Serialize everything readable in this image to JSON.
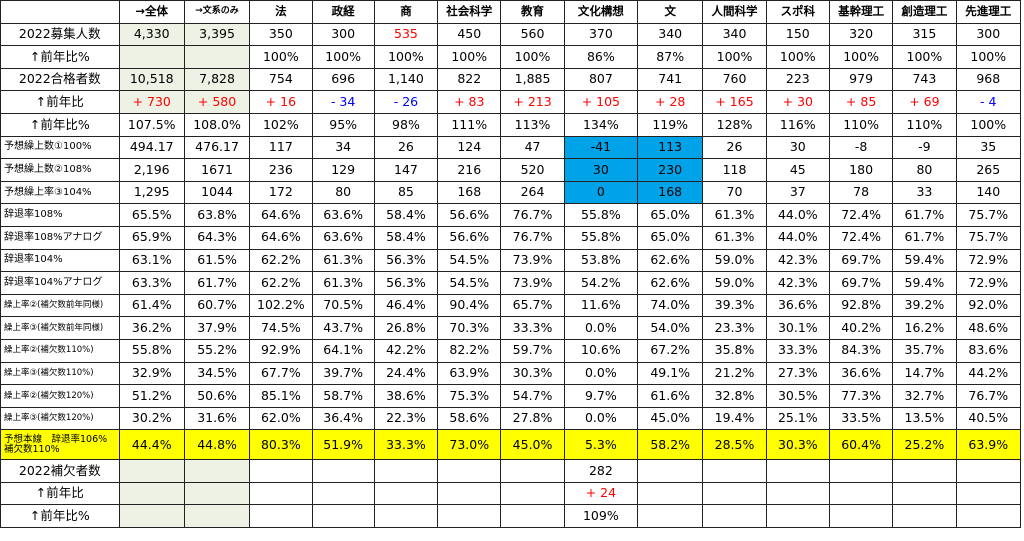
{
  "colors": {
    "positive": "#ff0000",
    "negative": "#0000ff",
    "highlight_blue": "#00a2e8",
    "highlight_yellow": "#ffff00",
    "total_bg": "#eef2e4"
  },
  "headers": [
    "",
    "→全体",
    "→文系のみ",
    "法",
    "政経",
    "商",
    "社会科学",
    "教育",
    "文化構想",
    "文",
    "人間科学",
    "スポ科",
    "基幹理工",
    "創造理工",
    "先進理工"
  ],
  "rows": [
    {
      "label": "2022募集人数",
      "cells": [
        "4,330",
        "3,395",
        "350",
        "300",
        "535",
        "450",
        "560",
        "370",
        "340",
        "340",
        "150",
        "320",
        "315",
        "300"
      ]
    },
    {
      "label": "↑前年比%",
      "cells": [
        "",
        "",
        "100%",
        "100%",
        "100%",
        "100%",
        "100%",
        "86%",
        "87%",
        "100%",
        "100%",
        "100%",
        "100%",
        "100%"
      ]
    },
    {
      "label": "2022合格者数",
      "cells": [
        "10,518",
        "7,828",
        "754",
        "696",
        "1,140",
        "822",
        "1,885",
        "807",
        "741",
        "760",
        "223",
        "979",
        "743",
        "968"
      ]
    },
    {
      "label": "↑前年比",
      "cells": [
        "+ 730",
        "+ 580",
        "+ 16",
        "- 34",
        "- 26",
        "+ 83",
        "+ 213",
        "+ 105",
        "+ 28",
        "+ 165",
        "+ 30",
        "+ 85",
        "+ 69",
        "- 4"
      ]
    },
    {
      "label": "↑前年比%",
      "cells": [
        "107.5%",
        "108.0%",
        "102%",
        "95%",
        "98%",
        "111%",
        "113%",
        "134%",
        "119%",
        "128%",
        "116%",
        "110%",
        "110%",
        "100%"
      ]
    },
    {
      "label": "予想繰上数①100%",
      "cells": [
        "494.17",
        "476.17",
        "117",
        "34",
        "26",
        "124",
        "47",
        "-41",
        "113",
        "26",
        "30",
        "-8",
        "-9",
        "35"
      ]
    },
    {
      "label": "予想繰上数②108%",
      "cells": [
        "2,196",
        "1671",
        "236",
        "129",
        "147",
        "216",
        "520",
        "30",
        "230",
        "118",
        "45",
        "180",
        "80",
        "265"
      ]
    },
    {
      "label": "予想繰上率③104%",
      "cells": [
        "1,295",
        "1044",
        "172",
        "80",
        "85",
        "168",
        "264",
        "0",
        "168",
        "70",
        "37",
        "78",
        "33",
        "140"
      ]
    },
    {
      "label": "辞退率108%",
      "cells": [
        "65.5%",
        "63.8%",
        "64.6%",
        "63.6%",
        "58.4%",
        "56.6%",
        "76.7%",
        "55.8%",
        "65.0%",
        "61.3%",
        "44.0%",
        "72.4%",
        "61.7%",
        "75.7%"
      ]
    },
    {
      "label": "辞退率108%アナログ",
      "cells": [
        "65.9%",
        "64.3%",
        "64.6%",
        "63.6%",
        "58.4%",
        "56.6%",
        "76.7%",
        "55.8%",
        "65.0%",
        "61.3%",
        "44.0%",
        "72.4%",
        "61.7%",
        "75.7%"
      ]
    },
    {
      "label": "辞退率104%",
      "cells": [
        "63.1%",
        "61.5%",
        "62.2%",
        "61.3%",
        "56.3%",
        "54.5%",
        "73.9%",
        "53.8%",
        "62.6%",
        "59.0%",
        "42.3%",
        "69.7%",
        "59.4%",
        "72.9%"
      ]
    },
    {
      "label": "辞退率104%アナログ",
      "cells": [
        "63.3%",
        "61.7%",
        "62.2%",
        "61.3%",
        "56.3%",
        "54.5%",
        "73.9%",
        "54.2%",
        "62.6%",
        "59.0%",
        "42.3%",
        "69.7%",
        "59.4%",
        "72.9%"
      ]
    },
    {
      "label": "繰上率②(補欠数前年同様)",
      "cells": [
        "61.4%",
        "60.7%",
        "102.2%",
        "70.5%",
        "46.4%",
        "90.4%",
        "65.7%",
        "11.6%",
        "74.0%",
        "39.3%",
        "36.6%",
        "92.8%",
        "39.2%",
        "92.0%"
      ]
    },
    {
      "label": "繰上率③(補欠数前年同様)",
      "cells": [
        "36.2%",
        "37.9%",
        "74.5%",
        "43.7%",
        "26.8%",
        "70.3%",
        "33.3%",
        "0.0%",
        "54.0%",
        "23.3%",
        "30.1%",
        "40.2%",
        "16.2%",
        "48.6%"
      ]
    },
    {
      "label": "繰上率②(補欠数110%)",
      "cells": [
        "55.8%",
        "55.2%",
        "92.9%",
        "64.1%",
        "42.2%",
        "82.2%",
        "59.7%",
        "10.6%",
        "67.2%",
        "35.8%",
        "33.3%",
        "84.3%",
        "35.7%",
        "83.6%"
      ]
    },
    {
      "label": "繰上率③(補欠数110%)",
      "cells": [
        "32.9%",
        "34.5%",
        "67.7%",
        "39.7%",
        "24.4%",
        "63.9%",
        "30.3%",
        "0.0%",
        "49.1%",
        "21.2%",
        "27.3%",
        "36.6%",
        "14.7%",
        "44.2%"
      ]
    },
    {
      "label": "繰上率②(補欠数120%)",
      "cells": [
        "51.2%",
        "50.6%",
        "85.1%",
        "58.7%",
        "38.6%",
        "75.3%",
        "54.7%",
        "9.7%",
        "61.6%",
        "32.8%",
        "30.5%",
        "77.3%",
        "32.7%",
        "76.7%"
      ]
    },
    {
      "label": "繰上率③(補欠数120%)",
      "cells": [
        "30.2%",
        "31.6%",
        "62.0%",
        "36.4%",
        "22.3%",
        "58.6%",
        "27.8%",
        "0.0%",
        "45.0%",
        "19.4%",
        "25.1%",
        "33.5%",
        "13.5%",
        "40.5%"
      ]
    },
    {
      "label": "予想本線　辞退率106%\n補欠数110%",
      "cells": [
        "44.4%",
        "44.8%",
        "80.3%",
        "51.9%",
        "33.3%",
        "73.0%",
        "45.0%",
        "5.3%",
        "58.2%",
        "28.5%",
        "30.3%",
        "60.4%",
        "25.2%",
        "63.9%"
      ]
    },
    {
      "label": "2022補欠者数",
      "cells": [
        "",
        "",
        "",
        "",
        "",
        "",
        "",
        "282",
        "",
        "",
        "",
        "",
        "",
        ""
      ]
    },
    {
      "label": "↑前年比",
      "cells": [
        "",
        "",
        "",
        "",
        "",
        "",
        "",
        "+ 24",
        "",
        "",
        "",
        "",
        "",
        ""
      ]
    },
    {
      "label": "↑前年比%",
      "cells": [
        "",
        "",
        "",
        "",
        "",
        "",
        "",
        "109%",
        "",
        "",
        "",
        "",
        "",
        ""
      ]
    }
  ]
}
